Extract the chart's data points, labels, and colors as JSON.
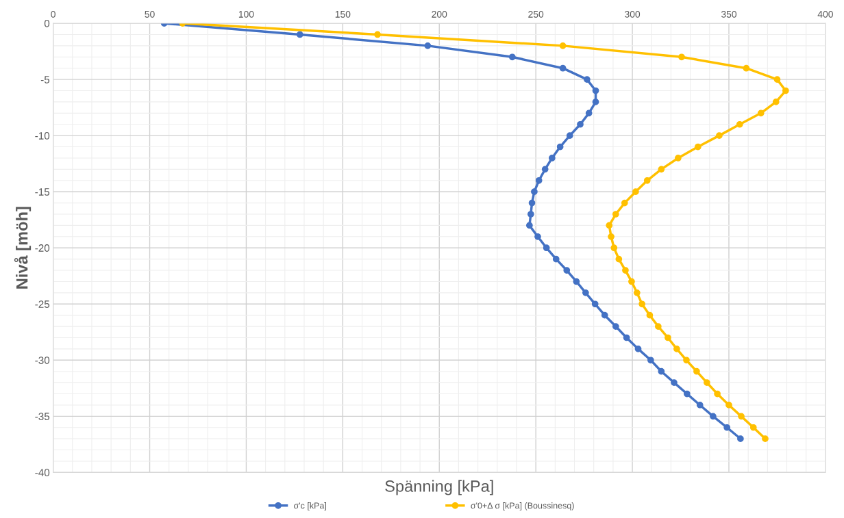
{
  "chart_data": {
    "type": "line",
    "xlabel": "Spänning [kPa]",
    "ylabel": "Nivå [möh]",
    "xlim": [
      0,
      400
    ],
    "xticks": [
      0,
      50,
      100,
      150,
      200,
      250,
      300,
      350,
      400
    ],
    "ylim": [
      -40,
      0
    ],
    "yticks": [
      -40,
      -35,
      -30,
      -25,
      -20,
      -15,
      -10,
      -5,
      0
    ],
    "grid": true,
    "legend": "bottom",
    "marker": "circle",
    "line_style": "solid",
    "series": [
      {
        "name": "σ'c [kPa]",
        "color": "#4472c4",
        "x": [
          57.5,
          127.8,
          194,
          237.8,
          264,
          276.5,
          281,
          281,
          277.5,
          273,
          267.6,
          262.6,
          258.4,
          254.8,
          251.6,
          249.2,
          248,
          247.4,
          246.7,
          251,
          255.5,
          260.5,
          266,
          271,
          275.8,
          280.7,
          285.7,
          291.4,
          297,
          303,
          309.5,
          315,
          321.6,
          328.3,
          335,
          341.8,
          349,
          356
        ],
        "values": [
          0,
          -1,
          -2,
          -3,
          -4,
          -5,
          -6,
          -7,
          -8,
          -9,
          -10,
          -11,
          -12,
          -13,
          -14,
          -15,
          -16,
          -17,
          -18,
          -19,
          -20,
          -21,
          -22,
          -23,
          -24,
          -25,
          -26,
          -27,
          -28,
          -29,
          -30,
          -31,
          -32,
          -33,
          -34,
          -35,
          -36,
          -37
        ]
      },
      {
        "name": "σ'0+Δ σ [kPa] (Boussinesq)",
        "color": "#ffc000",
        "x": [
          67,
          168,
          264,
          325.5,
          359,
          375,
          379.4,
          374.4,
          366.6,
          355.6,
          345,
          334,
          323.7,
          315,
          307.7,
          301.7,
          296,
          291.4,
          288,
          289,
          290.5,
          293,
          296.4,
          299.6,
          302.4,
          305,
          309,
          313.4,
          318.4,
          323,
          328,
          333.3,
          338.6,
          344,
          350,
          356.4,
          362.7,
          368.8
        ],
        "values": [
          0,
          -1,
          -2,
          -3,
          -4,
          -5,
          -6,
          -7,
          -8,
          -9,
          -10,
          -11,
          -12,
          -13,
          -14,
          -15,
          -16,
          -17,
          -18,
          -19,
          -20,
          -21,
          -22,
          -23,
          -24,
          -25,
          -26,
          -27,
          -28,
          -29,
          -30,
          -31,
          -32,
          -33,
          -34,
          -35,
          -36,
          -37
        ]
      }
    ]
  }
}
